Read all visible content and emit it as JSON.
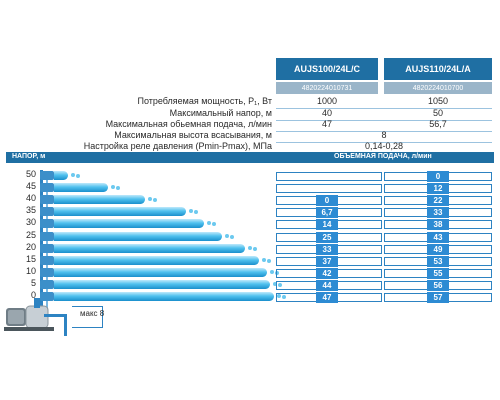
{
  "models": [
    {
      "name": "AUJS100/24L/C",
      "code": "4820224010731"
    },
    {
      "name": "AUJS110/24L/A",
      "code": "4820224010700"
    }
  ],
  "specs": [
    {
      "label": "Потребляемая мощность, P₁, Вт",
      "v1": "1000",
      "v2": "1050"
    },
    {
      "label": "Максимальный напор, м",
      "v1": "40",
      "v2": "50"
    },
    {
      "label": "Максимальная обьемная подача, л/мин",
      "v1": "47",
      "v2": "56,7"
    },
    {
      "label": "Максимальная высота всасывания, м",
      "merged": "8"
    },
    {
      "label": "Настройка реле давления (Pmin-Pmax), МПа",
      "merged": "0,14-0,28"
    }
  ],
  "table": {
    "head_label": "НАПОР, м",
    "flow_label": "ОБЪЕМНАЯ ПОДАЧА, л/мин",
    "suction_label": "макс 8"
  },
  "heads": [
    "50",
    "45",
    "40",
    "35",
    "30",
    "25",
    "20",
    "15",
    "10",
    "5",
    "0"
  ],
  "flows_model1": [
    "",
    "",
    "0",
    "6,7",
    "14",
    "25",
    "33",
    "37",
    "42",
    "44",
    "47"
  ],
  "flows_model2": [
    "0",
    "12",
    "22",
    "33",
    "38",
    "43",
    "49",
    "53",
    "55",
    "56",
    "57"
  ],
  "colors": {
    "accent": "#1f6fa3",
    "badge": "#2d8bd3",
    "water": "#4fc0ee"
  }
}
